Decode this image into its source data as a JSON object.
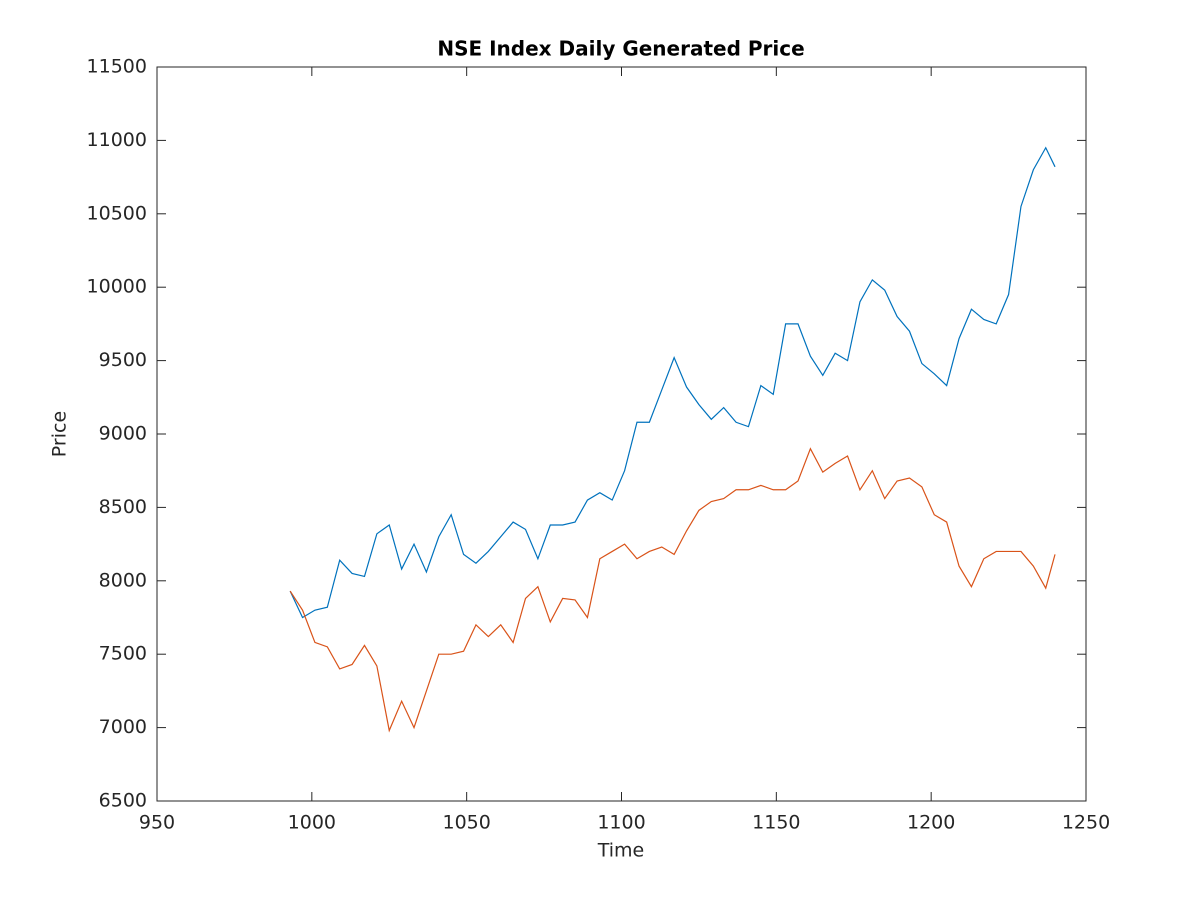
{
  "chart_data": {
    "type": "line",
    "title": "NSE Index Daily Generated Price",
    "x_label": "Time",
    "y_label": "Price",
    "x": [
      993,
      997,
      1001,
      1005,
      1009,
      1013,
      1017,
      1021,
      1025,
      1029,
      1033,
      1037,
      1041,
      1045,
      1049,
      1053,
      1057,
      1061,
      1065,
      1069,
      1073,
      1077,
      1081,
      1085,
      1089,
      1093,
      1097,
      1101,
      1105,
      1109,
      1113,
      1117,
      1121,
      1125,
      1129,
      1133,
      1137,
      1141,
      1145,
      1149,
      1153,
      1157,
      1161,
      1165,
      1169,
      1173,
      1177,
      1181,
      1185,
      1189,
      1193,
      1197,
      1201,
      1205,
      1209,
      1213,
      1217,
      1221,
      1225,
      1229,
      1233,
      1237,
      1240
    ],
    "series": [
      {
        "color": "#0072bd",
        "values": [
          7930,
          7750,
          7800,
          7820,
          8140,
          8050,
          8030,
          8320,
          8380,
          8080,
          8250,
          8060,
          8300,
          8450,
          8180,
          8120,
          8200,
          8300,
          8400,
          8350,
          8150,
          8380,
          8380,
          8400,
          8550,
          8600,
          8550,
          8750,
          9080,
          9080,
          9300,
          9520,
          9320,
          9200,
          9100,
          9180,
          9080,
          9050,
          9330,
          9270,
          9750,
          9750,
          9530,
          9400,
          9550,
          9500,
          9900,
          10050,
          9980,
          9800,
          9700,
          9480,
          9410,
          9330,
          9650,
          9850,
          9780,
          9750,
          9950,
          10550,
          10800,
          10950,
          10820
        ]
      },
      {
        "color": "#d95319",
        "values": [
          7930,
          7800,
          7580,
          7550,
          7400,
          7430,
          7560,
          7420,
          6980,
          7180,
          7000,
          7250,
          7500,
          7500,
          7520,
          7700,
          7620,
          7700,
          7580,
          7880,
          7960,
          7720,
          7880,
          7870,
          7750,
          8150,
          8200,
          8250,
          8150,
          8200,
          8230,
          8180,
          8340,
          8480,
          8540,
          8560,
          8620,
          8620,
          8650,
          8620,
          8620,
          8680,
          8900,
          8740,
          8800,
          8850,
          8620,
          8750,
          8560,
          8680,
          8700,
          8640,
          8450,
          8400,
          8100,
          7960,
          8150,
          8200,
          8200,
          8200,
          8100,
          7950,
          8180
        ]
      }
    ],
    "xlim": [
      950,
      1250
    ],
    "xticks": [
      950,
      1000,
      1050,
      1100,
      1150,
      1200,
      1250
    ],
    "ylim": [
      6500,
      11500
    ],
    "yticks": [
      6500,
      7000,
      7500,
      8000,
      8500,
      9000,
      9500,
      10000,
      10500,
      11000,
      11500
    ],
    "grid": false
  }
}
